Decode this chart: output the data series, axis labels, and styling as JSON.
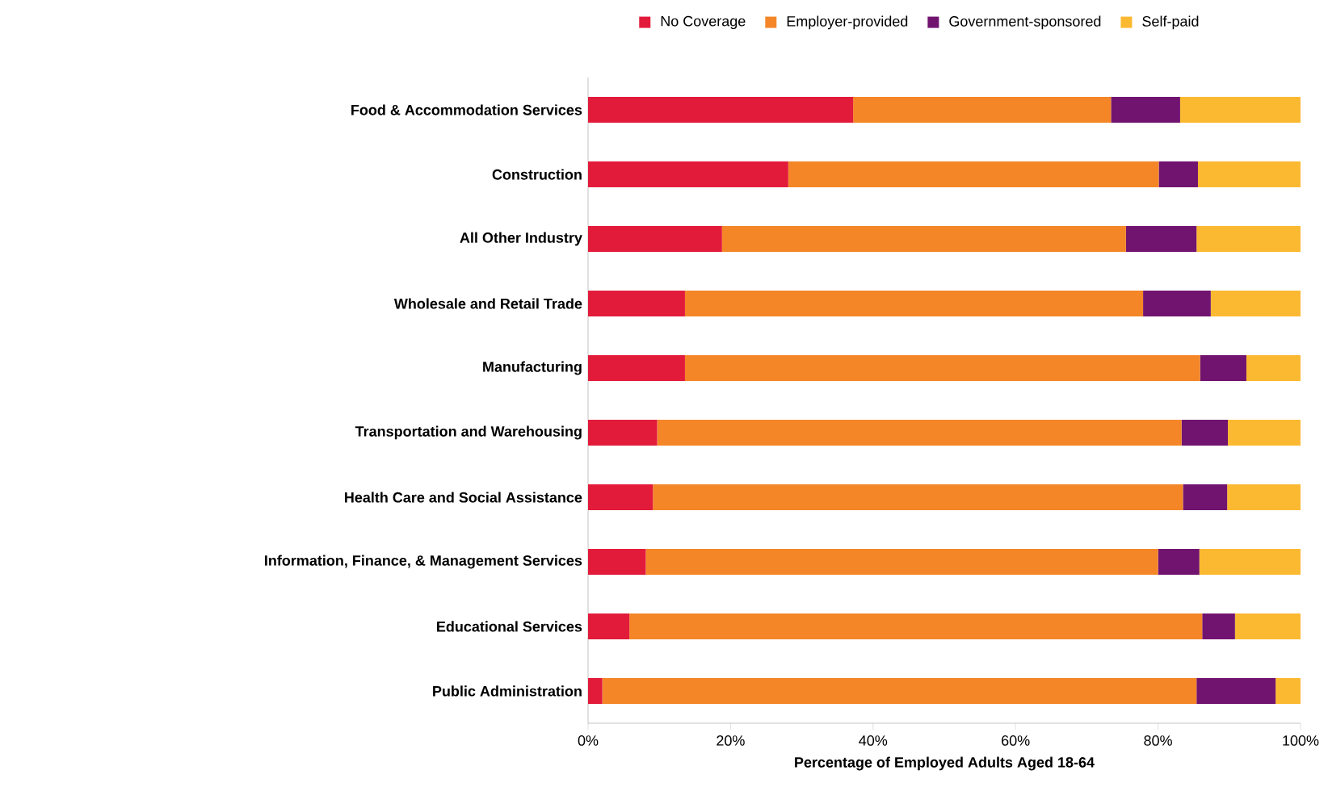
{
  "chart_data": {
    "type": "bar",
    "orientation": "horizontal",
    "stacked": true,
    "legend": "top",
    "xlabel": "Percentage of Employed Adults Aged 18-64",
    "categories": [
      "Food & Accommodation Services",
      "Construction",
      "All Other Industry",
      "Wholesale and Retail Trade",
      "Manufacturing",
      "Transportation and Warehousing",
      "Health Care and Social Assistance",
      "Information, Finance, & Management Services",
      "Educational Services",
      "Public Administration"
    ],
    "series": [
      {
        "name": "No Coverage",
        "color": "#e31b3b",
        "values": [
          37.2,
          28.1,
          18.8,
          13.6,
          13.6,
          9.7,
          9.1,
          8.1,
          5.8,
          2.0
        ]
      },
      {
        "name": "Employer-provided",
        "color": "#f48627",
        "values": [
          36.2,
          52.0,
          56.7,
          64.3,
          72.3,
          73.6,
          74.4,
          71.9,
          80.4,
          83.4
        ]
      },
      {
        "name": "Government-sponsored",
        "color": "#711470",
        "values": [
          9.7,
          5.5,
          9.9,
          9.5,
          6.5,
          6.5,
          6.2,
          5.8,
          4.6,
          11.1
        ]
      },
      {
        "name": "Self-paid",
        "color": "#fbb931",
        "values": [
          16.9,
          14.4,
          14.6,
          12.6,
          7.6,
          10.2,
          10.3,
          14.2,
          9.2,
          3.5
        ]
      }
    ],
    "xlim": [
      0,
      100
    ],
    "xticks": [
      {
        "value": 0,
        "label": "0%"
      },
      {
        "value": 20,
        "label": "20%"
      },
      {
        "value": 40,
        "label": "40%"
      },
      {
        "value": 60,
        "label": "60%"
      },
      {
        "value": 80,
        "label": "80%"
      },
      {
        "value": 100,
        "label": "100%"
      }
    ]
  }
}
